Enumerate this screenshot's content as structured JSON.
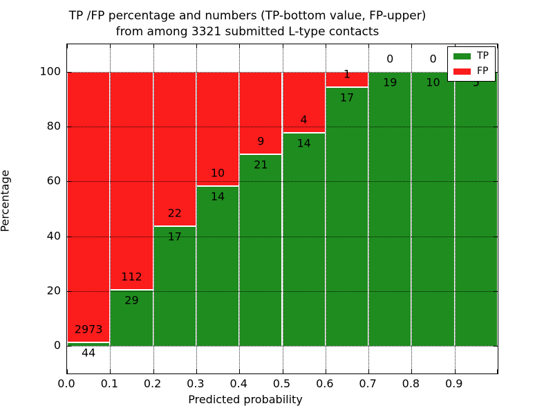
{
  "chart_data": {
    "type": "bar",
    "stacked": true,
    "title_line1": "TP /FP percentage and numbers (TP-bottom value, FP-upper)",
    "title_line2": "from among 3321 submitted L-type contacts",
    "xlabel": "Predicted probability",
    "ylabel": "Percentage",
    "total_submitted_contacts": 3321,
    "categories": [
      "0.0",
      "0.1",
      "0.2",
      "0.3",
      "0.4",
      "0.5",
      "0.6",
      "0.7",
      "0.8",
      "0.9"
    ],
    "bin_width": 0.1,
    "x_range": [
      0.0,
      1.0
    ],
    "yticks": [
      0,
      20,
      40,
      60,
      80,
      100
    ],
    "ylim": [
      -10,
      110
    ],
    "grid": "dotted",
    "series": [
      {
        "name": "TP",
        "color": "#1f8c1f",
        "counts": [
          44,
          29,
          17,
          14,
          21,
          14,
          17,
          19,
          10,
          5
        ]
      },
      {
        "name": "FP",
        "color": "#fb1c1c",
        "counts": [
          2973,
          112,
          22,
          10,
          9,
          4,
          1,
          0,
          0,
          0
        ]
      }
    ],
    "legend": {
      "position": "upper-right",
      "entries": [
        "TP",
        "FP"
      ]
    }
  }
}
